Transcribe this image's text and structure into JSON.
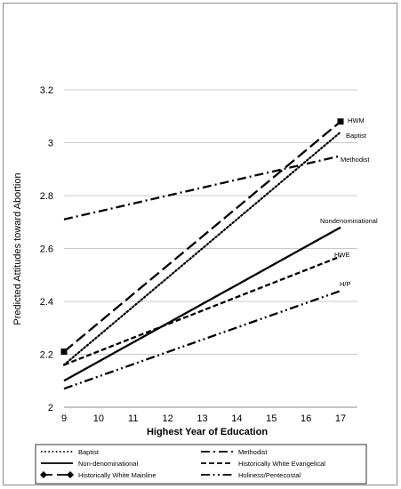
{
  "chart_data": {
    "type": "line",
    "title": "",
    "xlabel": "Highest Year of Education",
    "ylabel": "Predicted Attitudes  toward Abortion",
    "x": [
      9,
      17
    ],
    "xticks": [
      9,
      10,
      11,
      12,
      13,
      14,
      15,
      16,
      17
    ],
    "yticks": [
      "2",
      "2.2",
      "2.4",
      "2.6",
      "2.8",
      "3",
      "3.2"
    ],
    "ylim": [
      2,
      3.2
    ],
    "grid": "horizontal",
    "legend_position": "bottom",
    "series": [
      {
        "name": "Baptist",
        "label": "Baptist",
        "values": [
          2.16,
          3.04
        ],
        "dash": "dotted",
        "marker": "none",
        "legend_marker": "none"
      },
      {
        "name": "Methodist",
        "label": "Methodist",
        "values": [
          2.71,
          2.95
        ],
        "dash": "dashdot",
        "marker": "none",
        "legend_marker": "none"
      },
      {
        "name": "Non-denominational",
        "label": "Nondenominational",
        "values": [
          2.1,
          2.68
        ],
        "dash": "solid",
        "marker": "none",
        "legend_marker": "none"
      },
      {
        "name": "Historically White Evangelical",
        "label": "HWE",
        "values": [
          2.16,
          2.57
        ],
        "dash": "dashed",
        "marker": "none",
        "legend_marker": "none"
      },
      {
        "name": "Historically White Mainline",
        "label": "HWM",
        "values": [
          2.21,
          3.08
        ],
        "dash": "longdash",
        "marker": "square",
        "legend_marker": "diamond"
      },
      {
        "name": "Holiness/Pentecostal",
        "label": "H/P",
        "values": [
          2.07,
          2.44
        ],
        "dash": "dashdotdot",
        "marker": "none",
        "legend_marker": "none"
      }
    ],
    "colors": {
      "line": "#000000",
      "grid": "#b7b7b7",
      "frame": "#8c8c8c"
    }
  }
}
